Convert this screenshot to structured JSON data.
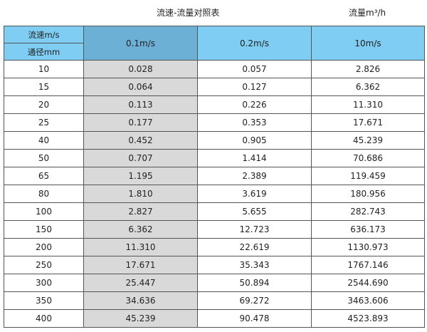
{
  "title": "流速-流量对照表",
  "unit_label": "流量m³/h",
  "header": {
    "velocity_label": "流速m/s",
    "diameter_label": "通径mm",
    "columns": [
      "0.1m/s",
      "0.2m/s",
      "10m/s"
    ]
  },
  "colors": {
    "header": "#7fcdf3",
    "header_highlight": "#6cb1d5",
    "highlight_column": "#d9d9d9"
  },
  "rows": [
    [
      "10",
      "0.028",
      "0.057",
      "2.826"
    ],
    [
      "15",
      "0.064",
      "0.127",
      "6.362"
    ],
    [
      "20",
      "0.113",
      "0.226",
      "11.310"
    ],
    [
      "25",
      "0.177",
      "0.353",
      "17.671"
    ],
    [
      "40",
      "0.452",
      "0.905",
      "45.239"
    ],
    [
      "50",
      "0.707",
      "1.414",
      "70.686"
    ],
    [
      "65",
      "1.195",
      "2.389",
      "119.459"
    ],
    [
      "80",
      "1.810",
      "3.619",
      "180.956"
    ],
    [
      "100",
      "2.827",
      "5.655",
      "282.743"
    ],
    [
      "150",
      "6.362",
      "12.723",
      "636.173"
    ],
    [
      "200",
      "11.310",
      "22.619",
      "1130.973"
    ],
    [
      "250",
      "17.671",
      "35.343",
      "1767.146"
    ],
    [
      "300",
      "25.447",
      "50.894",
      "2544.690"
    ],
    [
      "350",
      "34.636",
      "69.272",
      "3463.606"
    ],
    [
      "400",
      "45.239",
      "90.478",
      "4523.893"
    ]
  ]
}
